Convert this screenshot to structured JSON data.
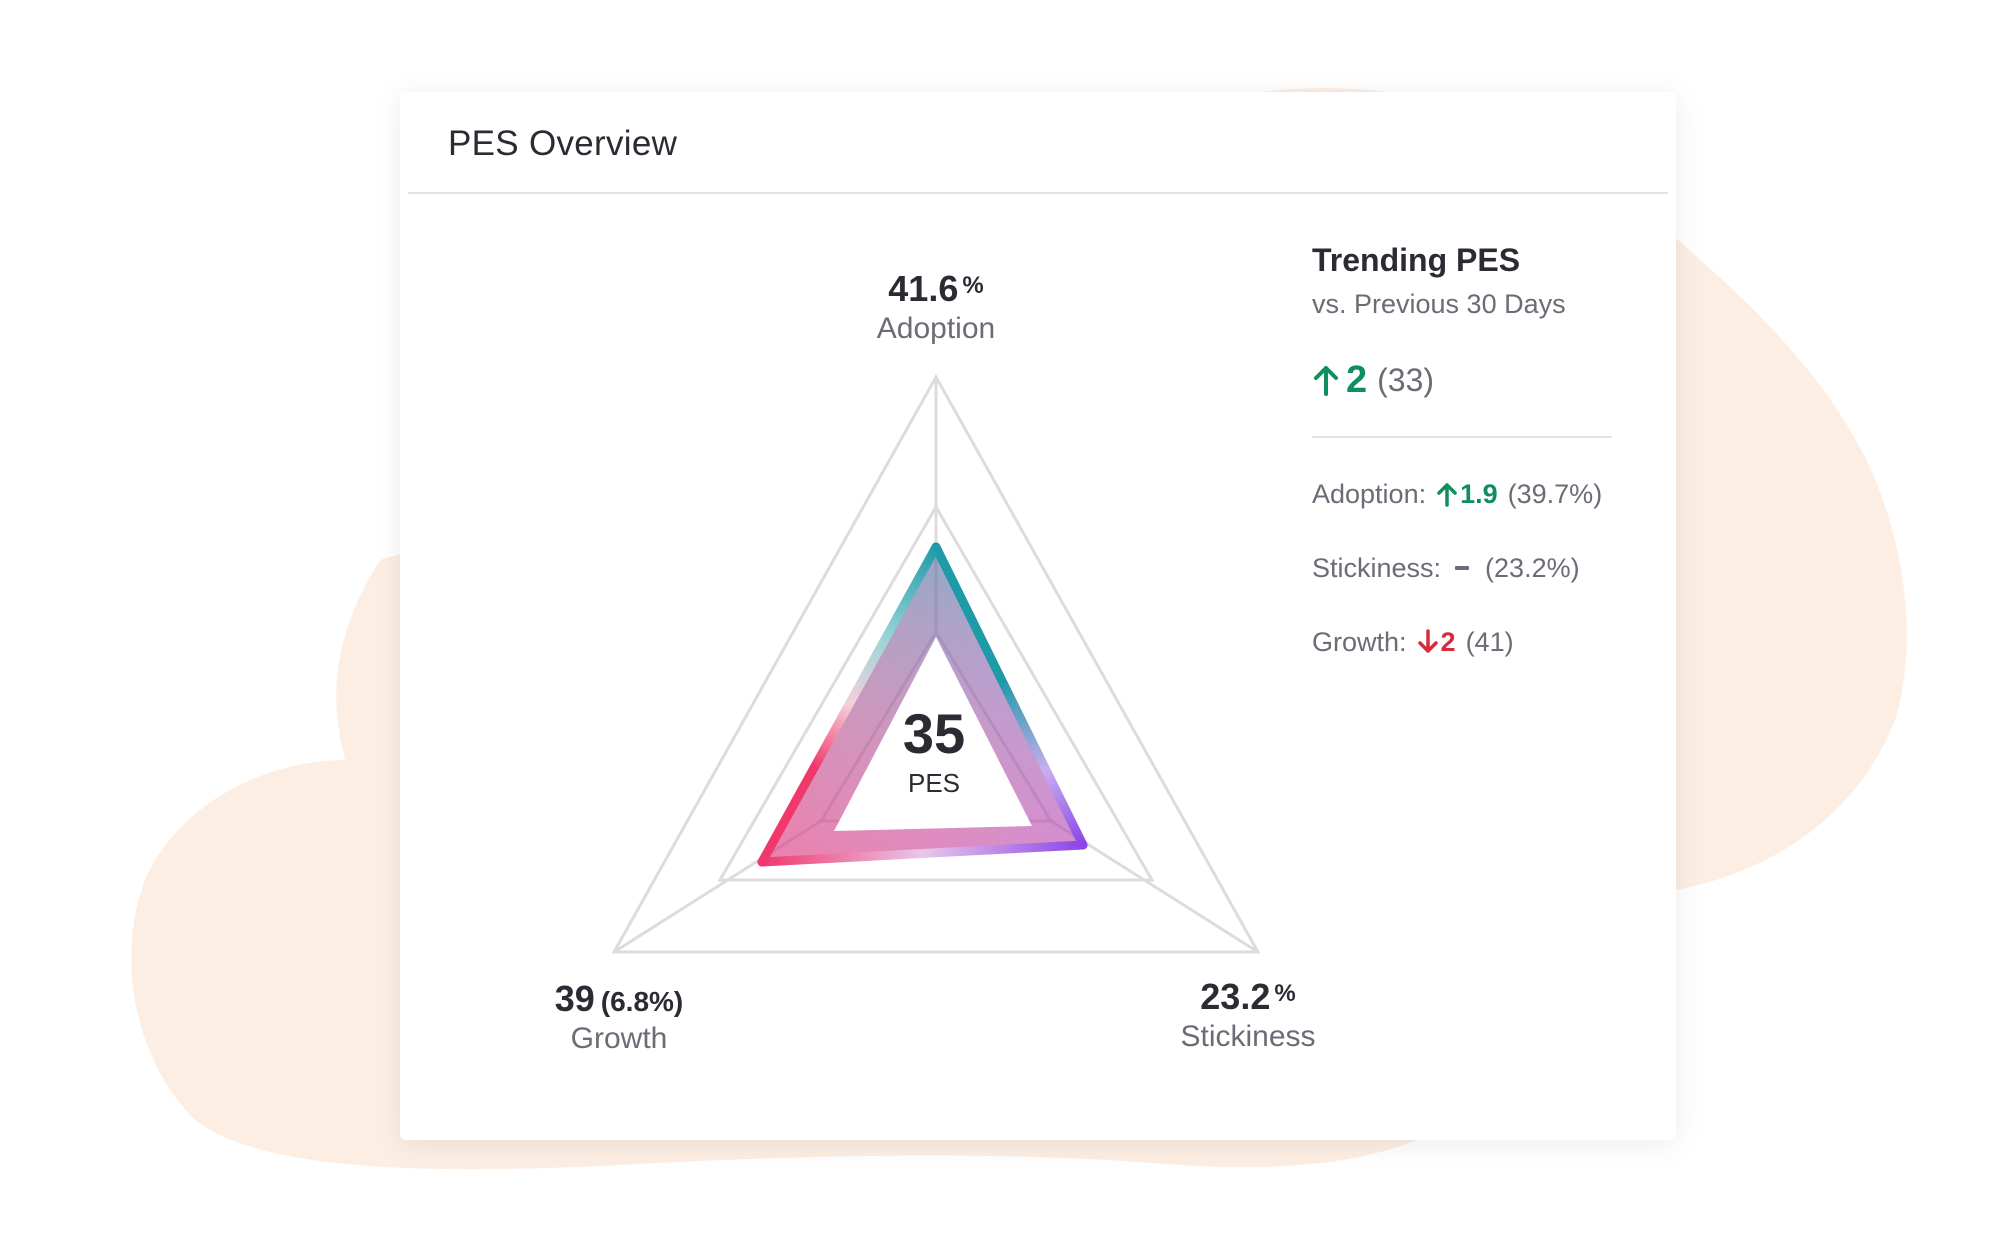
{
  "card": {
    "title": "PES Overview"
  },
  "radar": {
    "adoption": {
      "value": "41.6",
      "unit": "%",
      "label": "Adoption"
    },
    "stickiness": {
      "value": "23.2",
      "unit": "%",
      "label": "Stickiness"
    },
    "growth": {
      "value": "39",
      "extra": "(6.8%)",
      "label": "Growth"
    },
    "center": {
      "value": "35",
      "label": "PES"
    }
  },
  "trending": {
    "title": "Trending PES",
    "subtitle": "vs. Previous 30 Days",
    "delta": "2",
    "previous": "(33)",
    "metrics": [
      {
        "label": "Adoption:",
        "delta": "1.9",
        "previous": "(39.7%)",
        "direction": "up"
      },
      {
        "label": "Stickiness:",
        "delta": "",
        "previous": "(23.2%)",
        "direction": "flat"
      },
      {
        "label": "Growth:",
        "delta": "2",
        "previous": "(41)",
        "direction": "down"
      }
    ]
  },
  "colors": {
    "up": "#0f8f5e",
    "down": "#d62b3a",
    "adoption": "#1f9aa7",
    "stickiness": "#8b45e6",
    "growth": "#f0386b",
    "background_blob": "#fdeee3"
  },
  "icons": {
    "up": "arrow-up-icon",
    "down": "arrow-down-icon",
    "flat": "dash-icon"
  }
}
